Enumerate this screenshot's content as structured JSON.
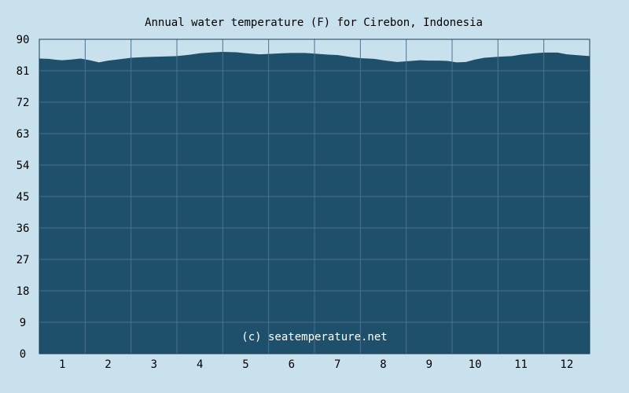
{
  "chart_data": {
    "type": "area",
    "title": "Annual water temperature (F) for Cirebon, Indonesia",
    "xlabel": "",
    "ylabel": "",
    "ylim": [
      0,
      90
    ],
    "yticks": [
      "90",
      "81",
      "72",
      "63",
      "54",
      "45",
      "36",
      "27",
      "18",
      "9",
      "0"
    ],
    "xlim": [
      0.5,
      12.5
    ],
    "xticks": [
      "1",
      "2",
      "3",
      "4",
      "5",
      "6",
      "7",
      "8",
      "9",
      "10",
      "11",
      "12"
    ],
    "grid": true,
    "fill_color": "#1e4f6b",
    "plot_background": "#c9e1ed",
    "watermark": "(c) seatemperature.net",
    "series": [
      {
        "x": [
          0.5,
          0.7,
          0.9,
          1.0,
          1.2,
          1.4,
          1.6,
          1.8,
          2.0,
          2.2,
          2.5,
          2.8,
          3.0,
          3.3,
          3.5,
          3.8,
          4.0,
          4.3,
          4.5,
          4.8,
          5.0,
          5.3,
          5.5,
          5.8,
          6.0,
          6.3,
          6.5,
          6.8,
          7.0,
          7.3,
          7.5,
          7.8,
          8.0,
          8.3,
          8.5,
          8.8,
          9.0,
          9.2,
          9.4,
          9.6,
          9.8,
          10.0,
          10.2,
          10.5,
          10.8,
          11.0,
          11.3,
          11.5,
          11.8,
          12.0,
          12.3,
          12.5
        ],
        "y": [
          84.5,
          84.4,
          84.1,
          84.0,
          84.2,
          84.5,
          84.0,
          83.4,
          83.9,
          84.2,
          84.7,
          84.9,
          85.0,
          85.1,
          85.2,
          85.6,
          86.0,
          86.3,
          86.4,
          86.3,
          86.0,
          85.7,
          85.8,
          86.0,
          86.1,
          86.1,
          85.9,
          85.6,
          85.5,
          84.9,
          84.6,
          84.4,
          84.0,
          83.5,
          83.7,
          84.0,
          83.9,
          83.9,
          83.8,
          83.4,
          83.5,
          84.2,
          84.7,
          85.0,
          85.2,
          85.6,
          86.0,
          86.2,
          86.2,
          85.7,
          85.4,
          85.2
        ]
      }
    ]
  }
}
